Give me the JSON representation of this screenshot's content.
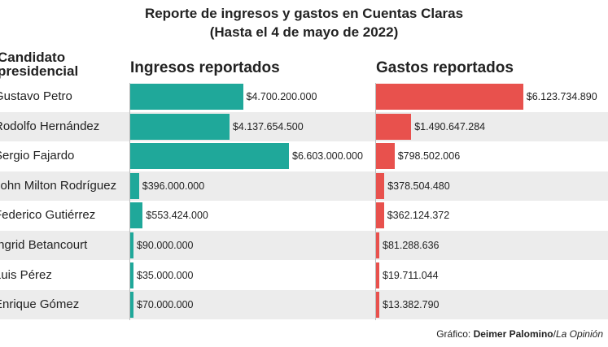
{
  "title_line1": "Reporte de ingresos y gastos en Cuentas Claras",
  "title_line2": "(Hasta el 4 de mayo de 2022)",
  "headers": {
    "candidate": "Candidato presidencial",
    "income": "Ingresos reportados",
    "expenses": "Gastos reportados"
  },
  "credit": {
    "prefix": "Gráfico: ",
    "author": "Deimer Palomino",
    "separator": "/",
    "outlet": "La Opinión"
  },
  "colors": {
    "income": "#1fa89a",
    "expenses": "#e8514d",
    "row_shade": "#ececec"
  },
  "chart_data": {
    "type": "bar",
    "orientation": "horizontal",
    "categories": [
      "Gustavo Petro",
      "Rodolfo Hernández",
      "Sergio Fajardo",
      "John Milton Rodríguez",
      "Federico Gutiérrez",
      "Íngrid Betancourt",
      "Luis Pérez",
      "Enrique Gómez"
    ],
    "series": [
      {
        "name": "Ingresos reportados",
        "values": [
          4700200000,
          4137654500,
          6603000000,
          396000000,
          553424000,
          90000000,
          35000000,
          70000000
        ],
        "labels": [
          "$4.700.200.000",
          "$4.137.654.500",
          "$6.603.000.000",
          "$396.000.000",
          "$553.424.000",
          "$90.000.000",
          "$35.000.000",
          "$70.000.000"
        ]
      },
      {
        "name": "Gastos reportados",
        "values": [
          6123734890,
          1490647284,
          798502006,
          378504480,
          362124372,
          81288636,
          19711044,
          13382790
        ],
        "labels": [
          "$6.123.734.890",
          "$1.490.647.284",
          "$798.502.006",
          "$378.504.480",
          "$362.124.372",
          "$81.288.636",
          "$19.711.044",
          "$13.382.790"
        ]
      }
    ],
    "grid": false,
    "legend": "none"
  }
}
